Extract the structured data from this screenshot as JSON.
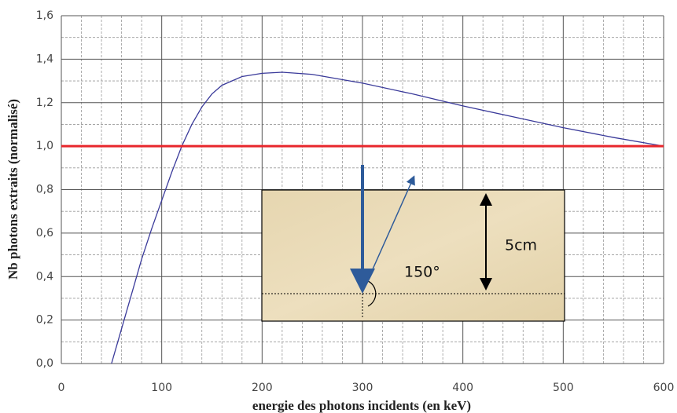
{
  "chart_data": {
    "type": "line",
    "x_label": "energie des photons incidents (en keV)",
    "y_label": "Nb photons extraits (normalisé)",
    "xlim": [
      0,
      600
    ],
    "xticks": [
      0,
      100,
      200,
      300,
      400,
      500,
      600
    ],
    "ylim": [
      0,
      1.6
    ],
    "yticks": [
      {
        "value": 0,
        "label": "0,0"
      },
      {
        "value": 0.2,
        "label": "0,2"
      },
      {
        "value": 0.4,
        "label": "0,4"
      },
      {
        "value": 0.6,
        "label": "0,6"
      },
      {
        "value": 0.8,
        "label": "0,8"
      },
      {
        "value": 1.0,
        "label": "1,0"
      },
      {
        "value": 1.2,
        "label": "1,2"
      },
      {
        "value": 1.4,
        "label": "1,4"
      },
      {
        "value": 1.6,
        "label": "1,6"
      }
    ],
    "grid": true,
    "minor_grid_x_divisions": 5,
    "minor_grid_y_divisions": 2,
    "x": [
      50,
      60,
      70,
      80,
      90,
      100,
      110,
      120,
      130,
      140,
      150,
      160,
      180,
      200,
      220,
      250,
      300,
      350,
      400,
      450,
      500,
      550,
      600
    ],
    "series": [
      {
        "color": "#3a3a9a",
        "values": [
          0,
          0.16,
          0.32,
          0.48,
          0.62,
          0.75,
          0.88,
          1.0,
          1.1,
          1.18,
          1.24,
          1.28,
          1.32,
          1.335,
          1.34,
          1.33,
          1.29,
          1.24,
          1.185,
          1.135,
          1.085,
          1.04,
          1.0
        ]
      }
    ],
    "reference_line": {
      "value": 1.0,
      "color": "#e8262b"
    },
    "annotations": {
      "angle": "150°",
      "thickness": "5cm"
    }
  }
}
